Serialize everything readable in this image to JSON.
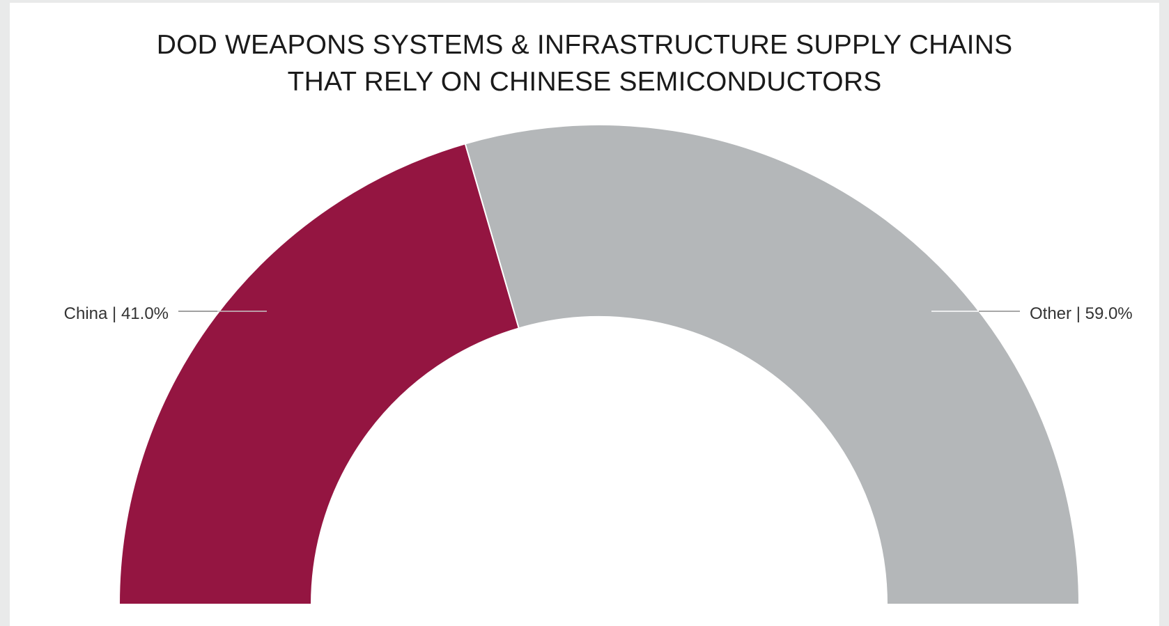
{
  "chart_data": {
    "type": "pie",
    "subtype": "half-donut",
    "title_lines": [
      "DOD WEAPONS SYSTEMS & INFRASTRUCTURE SUPPLY CHAINS",
      "THAT RELY ON CHINESE SEMICONDUCTORS"
    ],
    "slices": [
      {
        "name": "China",
        "value": 41.0,
        "label": "China | 41.0%",
        "color": "#941541"
      },
      {
        "name": "Other",
        "value": 59.0,
        "label": "Other | 59.0%",
        "color": "#b4b7b9"
      }
    ]
  }
}
